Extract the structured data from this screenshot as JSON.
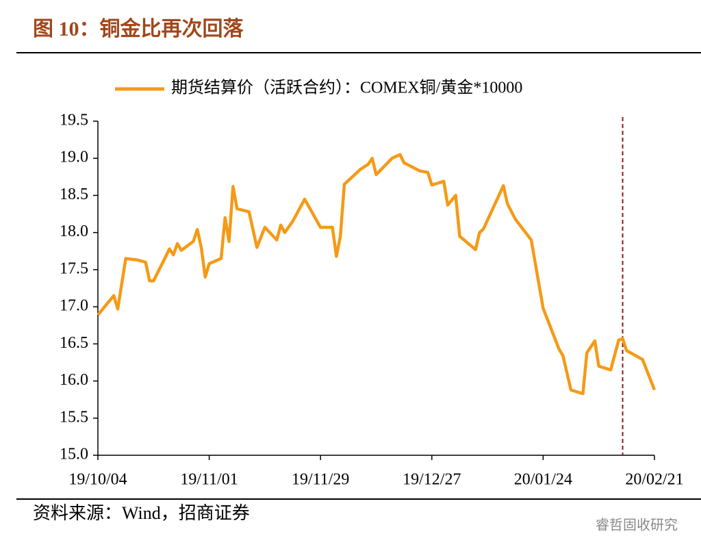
{
  "chart_data": {
    "type": "line",
    "title": "图 10：铜金比再次回落",
    "source": "资料来源：Wind，招商证券",
    "watermark": "睿哲固收研究",
    "x": [
      "19/10/04",
      "19/10/08",
      "19/10/09",
      "19/10/11",
      "19/10/14",
      "19/10/16",
      "19/10/17",
      "19/10/18",
      "19/10/21",
      "19/10/22",
      "19/10/23",
      "19/10/24",
      "19/10/25",
      "19/10/28",
      "19/10/29",
      "19/10/30",
      "19/10/31",
      "19/11/01",
      "19/11/04",
      "19/11/05",
      "19/11/06",
      "19/11/07",
      "19/11/08",
      "19/11/11",
      "19/11/13",
      "19/11/15",
      "19/11/18",
      "19/11/19",
      "19/11/20",
      "19/11/22",
      "19/11/25",
      "19/11/29",
      "19/12/02",
      "19/12/03",
      "19/12/04",
      "19/12/05",
      "19/12/09",
      "19/12/11",
      "19/12/12",
      "19/12/13",
      "19/12/17",
      "19/12/19",
      "19/12/20",
      "19/12/24",
      "19/12/26",
      "19/12/27",
      "19/12/30",
      "19/12/31",
      "20/01/02",
      "20/01/03",
      "20/01/07",
      "20/01/08",
      "20/01/09",
      "20/01/14",
      "20/01/15",
      "20/01/17",
      "20/01/21",
      "20/01/24",
      "20/01/28",
      "20/01/29",
      "20/01/31",
      "20/02/03",
      "20/02/04",
      "20/02/06",
      "20/02/07",
      "20/02/10",
      "20/02/12",
      "20/02/13",
      "20/02/14",
      "20/02/18",
      "20/02/21"
    ],
    "series": [
      {
        "name": "期货结算价（活跃合约）：COMEX铜/黄金*10000",
        "color": "#f59a16",
        "values": [
          16.89,
          17.15,
          16.97,
          17.65,
          17.63,
          17.6,
          17.35,
          17.35,
          17.67,
          17.78,
          17.7,
          17.85,
          17.76,
          17.88,
          18.04,
          17.8,
          17.4,
          17.58,
          17.65,
          18.2,
          17.88,
          18.62,
          18.32,
          18.28,
          17.8,
          18.07,
          17.9,
          18.1,
          18.0,
          18.15,
          18.45,
          18.07,
          18.07,
          17.68,
          17.95,
          18.65,
          18.85,
          18.92,
          19.0,
          18.78,
          19.0,
          19.05,
          18.94,
          18.83,
          18.81,
          18.64,
          18.69,
          18.37,
          18.5,
          17.95,
          17.77,
          18.0,
          18.05,
          18.63,
          18.39,
          18.18,
          17.9,
          16.98,
          16.43,
          16.34,
          15.88,
          15.83,
          16.38,
          16.54,
          16.2,
          16.15,
          16.55,
          16.57,
          16.41,
          16.29,
          15.88
        ]
      }
    ],
    "xlim": [
      "19/10/04",
      "20/02/21"
    ],
    "xticks": [
      "19/10/04",
      "19/11/01",
      "19/11/29",
      "19/12/27",
      "20/01/24",
      "20/02/21"
    ],
    "ylim": [
      15,
      19.5
    ],
    "yticks": [
      {
        "value": 15,
        "label": "15.0"
      },
      15.5,
      {
        "value": 16,
        "label": "16.0"
      },
      16.5,
      {
        "value": 17,
        "label": "17.0"
      },
      17.5,
      {
        "value": 18,
        "label": "18.0"
      },
      18.5,
      {
        "value": 19,
        "label": "19.0"
      },
      19.5
    ],
    "vline_x": "20/02/13",
    "vline_color": "#8b1a1a",
    "grid": false
  }
}
